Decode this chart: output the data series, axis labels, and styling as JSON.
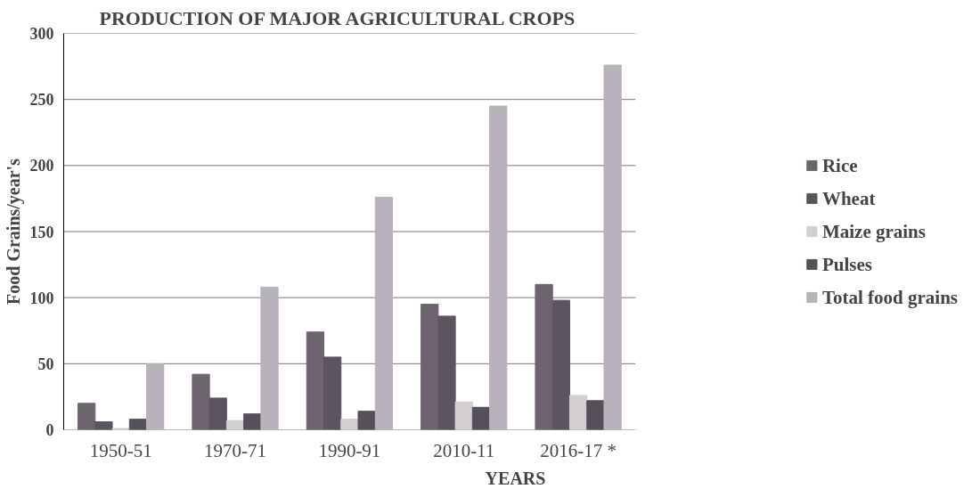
{
  "chart_data": {
    "type": "bar",
    "title": "PRODUCTION OF MAJOR AGRICULTURAL CROPS",
    "xlabel": "YEARS",
    "ylabel": "Food Grains/year's",
    "categories": [
      "1950-51",
      "1970-71",
      "1990-91",
      "2010-11",
      "2016-17 *"
    ],
    "series": [
      {
        "name": "Rice",
        "color": "#6e6470",
        "values": [
          20,
          42,
          74,
          95,
          110
        ]
      },
      {
        "name": "Wheat",
        "color": "#5c5560",
        "values": [
          6,
          24,
          55,
          86,
          98
        ]
      },
      {
        "name": "Maize grains",
        "color": "#d2ced2",
        "values": [
          1,
          7,
          8,
          21,
          26
        ]
      },
      {
        "name": "Pulses",
        "color": "#55505a",
        "values": [
          8,
          12,
          14,
          17,
          22
        ]
      },
      {
        "name": "Total food grains",
        "color": "#b8b2ba",
        "values": [
          50,
          108,
          176,
          245,
          276
        ]
      }
    ],
    "ylim": [
      0,
      300
    ],
    "yticks": [
      0,
      50,
      100,
      150,
      200,
      250,
      300
    ],
    "grid": "y",
    "legend": "right"
  }
}
